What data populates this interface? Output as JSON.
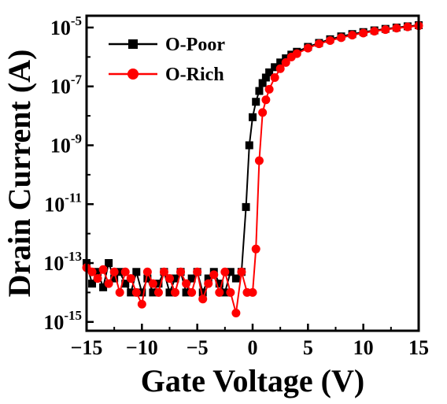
{
  "chart_data": {
    "type": "line",
    "xlabel": "Gate Voltage (V)",
    "ylabel": "Drain Current (A)",
    "xlim": [
      -15,
      15
    ],
    "ylim_log10": [
      -15.3,
      -4.6
    ],
    "y_scale": "log",
    "grid": false,
    "legend_position": "top-left",
    "x_ticks": [
      -15,
      -10,
      -5,
      0,
      5,
      10,
      15
    ],
    "x_tick_labels": [
      "−15",
      "−10",
      "−5",
      "0",
      "5",
      "10",
      "15"
    ],
    "y_ticks": [
      1e-15,
      1e-13,
      1e-11,
      1e-09,
      1e-07,
      1e-05
    ],
    "y_tick_bases": [
      "10",
      "10",
      "10",
      "10",
      "10",
      "10"
    ],
    "y_tick_exponents": [
      "-15",
      "-13",
      "-11",
      "-9",
      "-7",
      "-5"
    ],
    "series": [
      {
        "name": "O-Poor",
        "color": "#000000",
        "marker": "square",
        "x": [
          -15,
          -14.5,
          -14,
          -13.5,
          -13,
          -12.5,
          -12,
          -11.5,
          -11,
          -10.5,
          -10,
          -9.5,
          -9,
          -8.5,
          -8,
          -7.5,
          -7,
          -6.5,
          -6,
          -5.5,
          -5,
          -4.5,
          -4,
          -3.5,
          -3,
          -2.5,
          -2,
          -1.5,
          -1,
          -0.6,
          -0.3,
          0,
          0.3,
          0.6,
          0.9,
          1.2,
          1.5,
          2,
          2.5,
          3,
          3.5,
          4,
          5,
          6,
          7,
          8,
          9,
          10,
          11,
          12,
          13,
          14,
          15
        ],
        "y": [
          1e-13,
          2e-14,
          5e-14,
          1.5e-14,
          1e-13,
          3e-14,
          5e-14,
          2e-14,
          1e-14,
          5e-14,
          1e-14,
          3e-14,
          1e-14,
          2e-14,
          5e-14,
          1e-14,
          3e-14,
          5e-14,
          1e-14,
          3e-14,
          5e-14,
          1e-14,
          3e-14,
          5e-14,
          2e-14,
          1e-14,
          5e-14,
          3e-14,
          5e-14,
          8e-12,
          1e-09,
          9e-09,
          3e-08,
          7e-08,
          1.3e-07,
          2e-07,
          3e-07,
          4.5e-07,
          6.5e-07,
          9e-07,
          1.2e-06,
          1.5e-06,
          2.2e-06,
          3e-06,
          4e-06,
          5e-06,
          6e-06,
          7e-06,
          8e-06,
          9e-06,
          1e-05,
          1.1e-05,
          1.2e-05
        ]
      },
      {
        "name": "O-Rich",
        "color": "#ff0000",
        "marker": "circle",
        "x": [
          -15,
          -14.5,
          -14,
          -13.5,
          -13,
          -12.5,
          -12,
          -11.5,
          -11,
          -10.5,
          -10,
          -9.5,
          -9,
          -8.5,
          -8,
          -7.5,
          -7,
          -6.5,
          -6,
          -5.5,
          -5,
          -4.5,
          -4,
          -3.5,
          -3,
          -2.5,
          -2,
          -1.5,
          -1,
          -0.5,
          0,
          0.3,
          0.6,
          0.9,
          1.2,
          1.5,
          2,
          2.5,
          3,
          3.5,
          4,
          5,
          6,
          7,
          8,
          9,
          10,
          11,
          12,
          13,
          14,
          15
        ],
        "y": [
          7e-14,
          5e-14,
          3e-14,
          6e-14,
          2e-14,
          5e-14,
          1e-14,
          5e-14,
          3e-14,
          1e-14,
          4e-15,
          5e-14,
          2e-14,
          1e-14,
          5e-14,
          3e-14,
          1e-14,
          5e-14,
          2e-14,
          1e-14,
          5e-14,
          6e-15,
          2e-14,
          4e-14,
          1e-14,
          5e-14,
          1e-14,
          2e-15,
          5e-14,
          1e-14,
          1e-14,
          3e-13,
          3e-10,
          1.3e-08,
          3.5e-08,
          8e-08,
          2e-07,
          4e-07,
          6.5e-07,
          1e-06,
          1.3e-06,
          2e-06,
          2.8e-06,
          3.6e-06,
          4.5e-06,
          5.5e-06,
          6.5e-06,
          7.5e-06,
          8.5e-06,
          9.5e-06,
          1.05e-05,
          1.15e-05
        ]
      }
    ]
  }
}
